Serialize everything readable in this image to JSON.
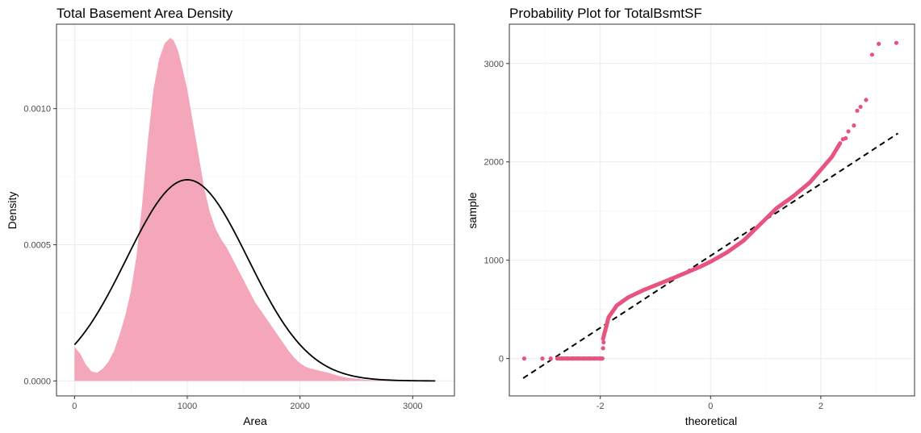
{
  "chart_data": [
    {
      "type": "area",
      "title": "Total Basement Area Density",
      "xlabel": "Area",
      "ylabel": "Density",
      "xlim": [
        -160,
        3370
      ],
      "ylim": [
        -5.5e-05,
        0.00131
      ],
      "x_ticks": [
        0,
        1000,
        2000,
        3000
      ],
      "x_tick_labels": [
        "0",
        "1000",
        "2000",
        "3000"
      ],
      "y_ticks": [
        0,
        0.0005,
        0.001
      ],
      "y_tick_labels": [
        "0.0000",
        "0.0005",
        "0.0010"
      ],
      "grid": true,
      "colors": {
        "density_fill": "#f4a6bb",
        "normal_curve": "#000000"
      },
      "series": [
        {
          "style": "filled-area",
          "x": [
            0,
            50,
            100,
            150,
            200,
            250,
            300,
            350,
            400,
            450,
            500,
            550,
            600,
            650,
            700,
            750,
            800,
            850,
            880,
            920,
            950,
            1000,
            1050,
            1100,
            1150,
            1200,
            1250,
            1300,
            1350,
            1400,
            1450,
            1500,
            1550,
            1600,
            1650,
            1700,
            1750,
            1800,
            1850,
            1900,
            1950,
            2000,
            2050,
            2100,
            2150,
            2200,
            2250,
            2300,
            2350,
            2400,
            2500,
            2600,
            2700,
            2800,
            2900,
            3000,
            3100,
            3200
          ],
          "y": [
            0.000125,
            0.0001,
            6e-05,
            3.5e-05,
            3e-05,
            4.5e-05,
            7e-05,
            0.00011,
            0.00017,
            0.00024,
            0.00033,
            0.00046,
            0.00065,
            0.00088,
            0.00107,
            0.00118,
            0.00124,
            0.00126,
            0.00125,
            0.00121,
            0.00116,
            0.00107,
            0.00095,
            0.00083,
            0.00071,
            0.00062,
            0.00056,
            0.00052,
            0.00049,
            0.00045,
            0.00041,
            0.00037,
            0.00033,
            0.00029,
            0.00026,
            0.00023,
            0.0002,
            0.00017,
            0.00014,
            0.00011,
            8.5e-05,
            6.5e-05,
            5.2e-05,
            4.5e-05,
            4e-05,
            3.5e-05,
            3e-05,
            2.4e-05,
            1.8e-05,
            1.3e-05,
            8e-06,
            4e-06,
            3e-06,
            2e-06,
            1.5e-06,
            1e-06,
            5e-07,
            1e-06
          ]
        },
        {
          "style": "line",
          "distribution": "normal",
          "mean": 1000,
          "sd": 540,
          "x_range": [
            0,
            3200
          ]
        }
      ]
    },
    {
      "type": "scatter",
      "title": "Probability Plot for TotalBsmtSF",
      "xlabel": "theoretical",
      "ylabel": "sample",
      "xlim": [
        -3.65,
        3.7
      ],
      "ylim": [
        -380,
        3400
      ],
      "x_ticks": [
        -2,
        0,
        2
      ],
      "x_tick_labels": [
        "-2",
        "0",
        "2"
      ],
      "y_ticks": [
        0,
        1000,
        2000,
        3000
      ],
      "y_tick_labels": [
        "0",
        "1000",
        "2000",
        "3000"
      ],
      "grid": true,
      "colors": {
        "points": "#e75480",
        "reference_line": "#000000"
      },
      "reference_line": {
        "style": "dashed",
        "x": [
          -3.4,
          3.4
        ],
        "y": [
          -200,
          2290
        ]
      },
      "sample_curve": {
        "x": [
          -1.95,
          -1.85,
          -1.7,
          -1.5,
          -1.2,
          -1.0,
          -0.8,
          -0.5,
          -0.2,
          0.0,
          0.3,
          0.6,
          0.8,
          1.0,
          1.2,
          1.5,
          1.8,
          2.0,
          2.2,
          2.35
        ],
        "y": [
          200,
          420,
          540,
          620,
          700,
          745,
          790,
          860,
          930,
          985,
          1080,
          1200,
          1310,
          1420,
          1530,
          1650,
          1790,
          1920,
          2050,
          2190
        ]
      },
      "series": [
        {
          "name": "",
          "x": [
            -3.38,
            -3.05,
            -2.9,
            -2.78,
            -2.7,
            -2.6,
            -2.5,
            -2.4,
            -2.3,
            -2.2,
            -2.1,
            -2.0,
            -1.97,
            -1.95,
            -1.94,
            -1.93,
            -1.91,
            -1.89,
            -1.87,
            2.4,
            2.45,
            2.5,
            2.6,
            2.66,
            2.72,
            2.82,
            2.93,
            3.05,
            3.37
          ],
          "y": [
            0,
            0,
            0,
            0,
            0,
            0,
            0,
            0,
            0,
            0,
            0,
            0,
            0,
            105,
            165,
            250,
            280,
            330,
            370,
            2230,
            2240,
            2310,
            2370,
            2520,
            2560,
            2630,
            3090,
            3200,
            3210
          ]
        }
      ]
    }
  ]
}
